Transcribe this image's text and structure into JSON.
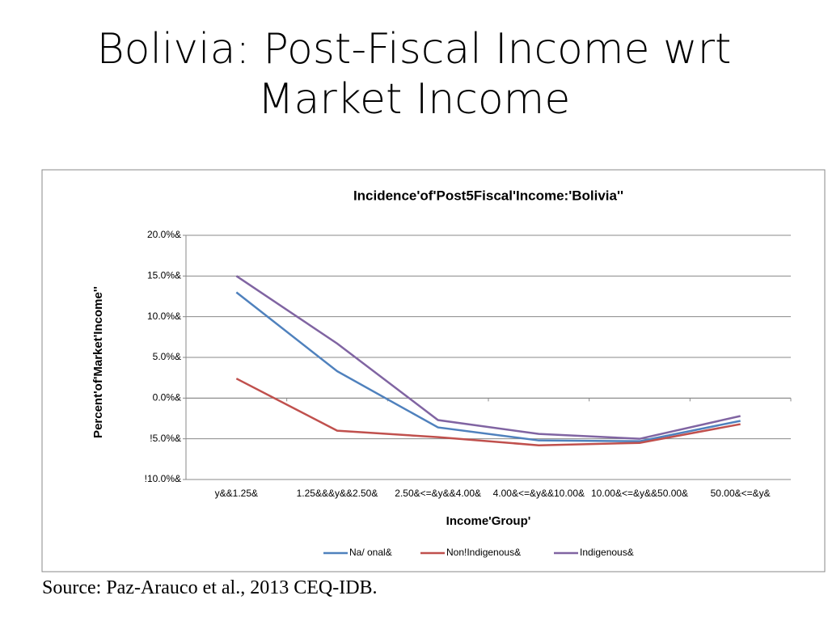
{
  "slide": {
    "title": "Bolivia: Post-Fiscal Income wrt Market Income",
    "source": "Source: Paz-Arauco et al., 2013 CEQ-IDB."
  },
  "chart_data": {
    "type": "line",
    "title": "Incidence'of'Post5Fiscal'Income:'Bolivia''",
    "x_label": "Income'Group'",
    "y_label": "Percent'of'Market'Income''",
    "categories": [
      "y&&1.25&",
      "1.25&&&y&&2.50&",
      "2.50&<=&y&&4.00&",
      "4.00&<=&y&&10.00&",
      "10.00&<=&y&&50.00&",
      "50.00&<=&y&"
    ],
    "series": [
      {
        "name": "Na/ onal&",
        "color": "#4f81bd",
        "values": [
          13.0,
          3.3,
          -3.6,
          -5.2,
          -5.3,
          -2.8
        ]
      },
      {
        "name": "Non!Indigenous&",
        "color": "#c0504d",
        "values": [
          2.4,
          -4.0,
          -4.8,
          -5.8,
          -5.5,
          -3.2
        ]
      },
      {
        "name": "Indigenous&",
        "color": "#8064a2",
        "values": [
          15.0,
          6.7,
          -2.7,
          -4.4,
          -5.0,
          -2.2
        ]
      }
    ],
    "ylim": [
      -10,
      20
    ],
    "yticks": [
      {
        "value": -10,
        "label": "!10.0%&"
      },
      {
        "value": -5,
        "label": "!5.0%&"
      },
      {
        "value": 0,
        "label": "0.0%&"
      },
      {
        "value": 5,
        "label": "5.0%&"
      },
      {
        "value": 10,
        "label": "10.0%&"
      },
      {
        "value": 15,
        "label": "15.0%&"
      },
      {
        "value": 20,
        "label": "20.0%&"
      }
    ],
    "grid": true,
    "legend": "bottom"
  }
}
